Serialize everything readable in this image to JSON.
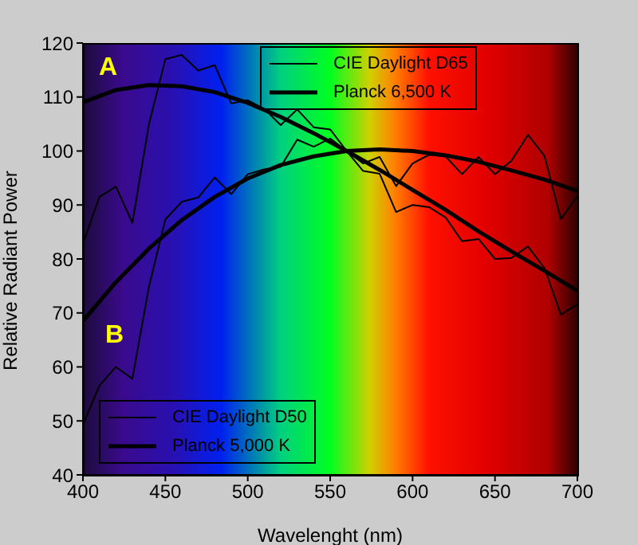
{
  "chart_data": {
    "type": "line",
    "xlabel": "Wavelenght (nm)",
    "ylabel": "Relative Radiant Power",
    "xlim": [
      400,
      700
    ],
    "xticks": [
      400,
      450,
      500,
      550,
      600,
      650,
      700
    ],
    "ylim": [
      40,
      120
    ],
    "yticks": [
      40,
      50,
      60,
      70,
      80,
      90,
      100,
      110,
      120
    ],
    "grid": false,
    "legend": "top",
    "marker": "none",
    "line_style": "solid",
    "series": [
      {
        "name": "CIE Daylight D65",
        "color": "#000000",
        "x": [
          400,
          410,
          420,
          430,
          440,
          450,
          460,
          470,
          480,
          490,
          500,
          510,
          520,
          530,
          540,
          550,
          560,
          570,
          580,
          590,
          600,
          610,
          620,
          630,
          640,
          650,
          660,
          670,
          680,
          690,
          700
        ],
        "values": [
          82.8,
          91.5,
          93.4,
          86.7,
          104.9,
          117,
          117.8,
          114.9,
          115.9,
          108.8,
          109.4,
          107.8,
          104.8,
          107.7,
          104.4,
          104,
          100,
          96.3,
          95.8,
          88.7,
          90,
          89.6,
          87.7,
          83.3,
          83.7,
          80,
          80.2,
          82.3,
          78.3,
          69.7,
          71.6
        ]
      },
      {
        "name": "Planck 6,500 K",
        "color": "#000000",
        "x": [
          400,
          420,
          440,
          460,
          480,
          500,
          520,
          540,
          560,
          580,
          600,
          620,
          640,
          660,
          680,
          700
        ],
        "values": [
          109,
          111.3,
          112.2,
          112,
          110.9,
          108.9,
          106.3,
          103.3,
          100,
          96.5,
          92.8,
          89.1,
          85.1,
          81.4,
          77.8,
          74.1
        ]
      },
      {
        "name": "CIE Daylight D50",
        "color": "#000000",
        "x": [
          400,
          410,
          420,
          430,
          440,
          450,
          460,
          470,
          480,
          490,
          500,
          510,
          520,
          530,
          540,
          550,
          560,
          570,
          580,
          590,
          600,
          610,
          620,
          630,
          640,
          650,
          660,
          670,
          680,
          690,
          700
        ],
        "values": [
          49.3,
          56.5,
          60,
          57.8,
          74.8,
          87.3,
          90.6,
          91.4,
          95.1,
          92,
          95.7,
          96.6,
          97.1,
          102.1,
          100.8,
          102.3,
          100,
          97.7,
          98.9,
          93.5,
          97.7,
          99.3,
          99,
          95.7,
          98.9,
          95.7,
          98.2,
          103,
          99.1,
          87.4,
          91.6
        ]
      },
      {
        "name": "Planck 5,000 K",
        "color": "#000000",
        "x": [
          400,
          420,
          440,
          460,
          480,
          500,
          520,
          540,
          560,
          580,
          600,
          620,
          640,
          660,
          680,
          700
        ],
        "values": [
          68.5,
          75.7,
          81.9,
          87.2,
          91.5,
          94.9,
          97.4,
          99,
          100,
          100.3,
          100,
          99.2,
          98,
          96.4,
          94.7,
          92.6
        ]
      }
    ],
    "annotations": [
      "A",
      "B"
    ]
  }
}
